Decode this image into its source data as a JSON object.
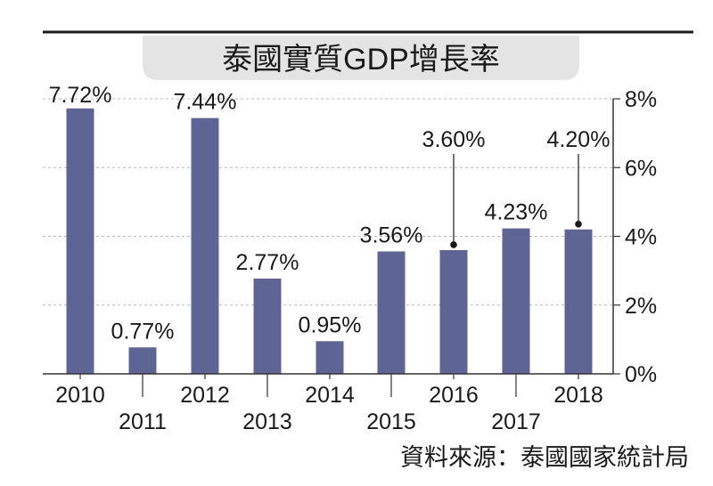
{
  "chart_data": {
    "type": "bar",
    "title": "泰國實質GDP增長率",
    "categories": [
      "2010",
      "2011",
      "2012",
      "2013",
      "2014",
      "2015",
      "2016",
      "2017",
      "2018"
    ],
    "values": [
      7.72,
      0.77,
      7.44,
      2.77,
      0.95,
      3.56,
      3.6,
      4.23,
      4.2
    ],
    "data_labels": [
      "7.72%",
      "0.77%",
      "7.44%",
      "2.77%",
      "0.95%",
      "3.56%",
      "3.60%",
      "4.23%",
      "4.20%"
    ],
    "ylim": [
      0,
      8
    ],
    "yticks": [
      0,
      2,
      4,
      6,
      8
    ],
    "ytick_labels": [
      "0%",
      "2%",
      "4%",
      "6%",
      "8%"
    ],
    "y_axis_side": "right",
    "grid": true,
    "xlabel": "",
    "ylabel": "",
    "source": "資料來源：泰國國家統計局",
    "colors": {
      "bar": "#5e6494",
      "title_bg": "#e4e4e4"
    }
  }
}
